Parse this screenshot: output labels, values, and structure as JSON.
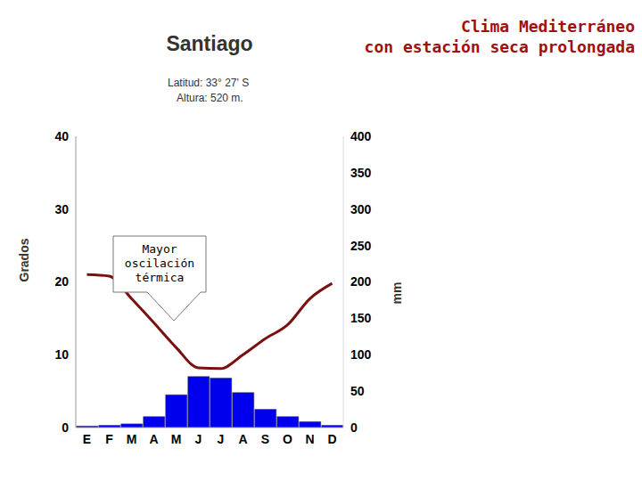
{
  "chart_data": {
    "type": "combo",
    "title": "Santiago",
    "subtitle": [
      "Latitud: 33° 27' S",
      "Altura: 520 m."
    ],
    "annotations": [
      "Clima Mediterráneo\ncon estación seca prolongada",
      "Mayor\noscilación\ntérmica"
    ],
    "ylabel": "Grados",
    "y2label": "mm",
    "categories": [
      "E",
      "F",
      "M",
      "A",
      "M",
      "J",
      "J",
      "A",
      "S",
      "O",
      "N",
      "D"
    ],
    "series": [
      {
        "type": "line",
        "color": "#7a1010",
        "values": [
          21,
          20.8,
          17.7,
          14.4,
          11,
          8.2,
          8.1,
          10,
          12.2,
          14.1,
          17.7,
          19.8
        ]
      },
      {
        "type": "bar",
        "axis": "y2",
        "color": "#0000ee",
        "values": [
          2,
          3,
          5,
          15,
          45,
          70,
          68,
          48,
          25,
          15,
          8,
          3
        ]
      }
    ],
    "ylim": [
      0,
      40
    ],
    "yticks": [
      0,
      10,
      20,
      30,
      40
    ],
    "y2lim": [
      0,
      400
    ],
    "y2ticks": [
      0,
      50,
      100,
      150,
      200,
      250,
      300,
      350,
      400
    ],
    "grid": false
  }
}
